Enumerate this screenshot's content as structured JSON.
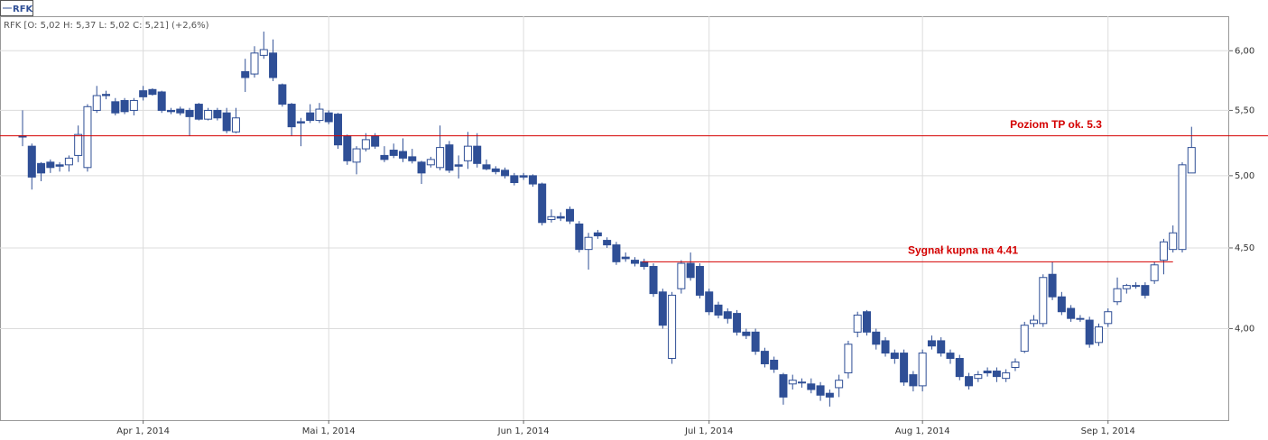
{
  "chart_data": {
    "type": "candlestick",
    "name": "RFK",
    "subtitle": "RFK [O: 5,02  H: 5,37  L: 5,02  C: 5,21] (+2,6%)",
    "color": "#2f4f96",
    "log": true,
    "grid": true,
    "axis_side": "right",
    "ylim": [
      3.5,
      6.31
    ],
    "yticks": [
      {
        "value": 4,
        "label": "4,00"
      },
      {
        "value": 4.5,
        "label": "4,50"
      },
      {
        "value": 5,
        "label": "5,00"
      },
      {
        "value": 5.5,
        "label": "5,50"
      },
      {
        "value": 6,
        "label": "6,00"
      }
    ],
    "xticks": [
      {
        "value": "2014-04-01",
        "label": "Apr 1, 2014"
      },
      {
        "value": "2014-05-01",
        "label": "Mai 1, 2014"
      },
      {
        "value": "2014-06-01",
        "label": "Jun 1, 2014"
      },
      {
        "value": "2014-07-01",
        "label": "Jul 1, 2014"
      },
      {
        "value": "2014-08-01",
        "label": "Aug 1, 2014"
      },
      {
        "value": "2014-09-01",
        "label": "Sep 1, 2014"
      }
    ],
    "annotations": [
      {
        "text": "Poziom TP ok. 5.3",
        "value": 5.3,
        "color": "#d40000"
      },
      {
        "text": "Sygnał kupna na 4.41",
        "value": 4.41,
        "from": "2014-06-20",
        "to": "2014-09-10",
        "color": "#d40000"
      }
    ],
    "x": [
      "2014-03-13",
      "2014-03-14",
      "2014-03-17",
      "2014-03-18",
      "2014-03-19",
      "2014-03-20",
      "2014-03-21",
      "2014-03-24",
      "2014-03-25",
      "2014-03-26",
      "2014-03-27",
      "2014-03-28",
      "2014-03-31",
      "2014-04-01",
      "2014-04-02",
      "2014-04-03",
      "2014-04-04",
      "2014-04-07",
      "2014-04-08",
      "2014-04-09",
      "2014-04-10",
      "2014-04-11",
      "2014-04-14",
      "2014-04-15",
      "2014-04-16",
      "2014-04-17",
      "2014-04-22",
      "2014-04-23",
      "2014-04-24",
      "2014-04-25",
      "2014-04-28",
      "2014-04-29",
      "2014-04-30",
      "2014-05-02",
      "2014-05-05",
      "2014-05-06",
      "2014-05-07",
      "2014-05-08",
      "2014-05-09",
      "2014-05-12",
      "2014-05-13",
      "2014-05-14",
      "2014-05-15",
      "2014-05-16",
      "2014-05-19",
      "2014-05-20",
      "2014-05-21",
      "2014-05-22",
      "2014-05-23",
      "2014-05-26",
      "2014-05-27",
      "2014-05-28",
      "2014-05-29",
      "2014-05-30",
      "2014-06-02",
      "2014-06-03",
      "2014-06-04",
      "2014-06-05",
      "2014-06-06",
      "2014-06-09",
      "2014-06-10",
      "2014-06-11",
      "2014-06-12",
      "2014-06-13",
      "2014-06-16",
      "2014-06-17",
      "2014-06-18",
      "2014-06-20",
      "2014-06-23",
      "2014-06-24",
      "2014-06-25",
      "2014-06-26",
      "2014-06-27",
      "2014-06-30",
      "2014-07-01",
      "2014-07-02",
      "2014-07-03",
      "2014-07-04",
      "2014-07-07",
      "2014-07-08",
      "2014-07-09",
      "2014-07-10",
      "2014-07-11",
      "2014-07-14",
      "2014-07-15",
      "2014-07-16",
      "2014-07-17",
      "2014-07-18",
      "2014-07-21",
      "2014-07-22",
      "2014-07-23",
      "2014-07-24",
      "2014-07-25",
      "2014-07-28",
      "2014-07-29",
      "2014-07-30",
      "2014-07-31",
      "2014-08-01",
      "2014-08-04",
      "2014-08-05",
      "2014-08-06",
      "2014-08-07",
      "2014-08-08",
      "2014-08-11",
      "2014-08-12",
      "2014-08-13",
      "2014-08-14",
      "2014-08-18",
      "2014-08-19",
      "2014-08-20",
      "2014-08-21",
      "2014-08-22",
      "2014-08-25",
      "2014-08-26",
      "2014-08-27",
      "2014-08-28",
      "2014-08-29",
      "2014-09-01",
      "2014-09-02",
      "2014-09-03",
      "2014-09-04",
      "2014-09-05",
      "2014-09-08",
      "2014-09-09",
      "2014-09-10",
      "2014-09-11",
      "2014-09-12"
    ],
    "ohlc": [
      [
        5.3,
        5.5,
        5.22,
        5.29
      ],
      [
        5.22,
        5.24,
        4.9,
        4.99
      ],
      [
        5.09,
        5.1,
        4.96,
        5.02
      ],
      [
        5.1,
        5.12,
        5.02,
        5.06
      ],
      [
        5.08,
        5.1,
        5.03,
        5.07
      ],
      [
        5.08,
        5.15,
        5.03,
        5.13
      ],
      [
        5.15,
        5.38,
        5.1,
        5.31
      ],
      [
        5.06,
        5.55,
        5.03,
        5.53
      ],
      [
        5.5,
        5.7,
        5.48,
        5.62
      ],
      [
        5.63,
        5.66,
        5.59,
        5.62
      ],
      [
        5.57,
        5.6,
        5.46,
        5.48
      ],
      [
        5.58,
        5.6,
        5.47,
        5.49
      ],
      [
        5.5,
        5.6,
        5.46,
        5.58
      ],
      [
        5.66,
        5.7,
        5.58,
        5.61
      ],
      [
        5.67,
        5.68,
        5.62,
        5.63
      ],
      [
        5.65,
        5.66,
        5.48,
        5.5
      ],
      [
        5.5,
        5.52,
        5.47,
        5.49
      ],
      [
        5.51,
        5.53,
        5.46,
        5.48
      ],
      [
        5.5,
        5.52,
        5.3,
        5.45
      ],
      [
        5.55,
        5.56,
        5.42,
        5.43
      ],
      [
        5.43,
        5.52,
        5.42,
        5.5
      ],
      [
        5.5,
        5.52,
        5.42,
        5.44
      ],
      [
        5.48,
        5.52,
        5.32,
        5.34
      ],
      [
        5.33,
        5.52,
        5.32,
        5.44
      ],
      [
        5.82,
        5.93,
        5.65,
        5.77
      ],
      [
        5.8,
        6.04,
        5.77,
        5.98
      ],
      [
        5.96,
        6.17,
        5.93,
        6.01
      ],
      [
        5.98,
        6.1,
        5.74,
        5.77
      ],
      [
        5.71,
        5.72,
        5.53,
        5.55
      ],
      [
        5.55,
        5.56,
        5.3,
        5.37
      ],
      [
        5.41,
        5.44,
        5.22,
        5.4
      ],
      [
        5.48,
        5.55,
        5.4,
        5.42
      ],
      [
        5.42,
        5.56,
        5.4,
        5.51
      ],
      [
        5.48,
        5.5,
        5.39,
        5.41
      ],
      [
        5.47,
        5.48,
        5.2,
        5.23
      ],
      [
        5.3,
        5.31,
        5.08,
        5.11
      ],
      [
        5.1,
        5.22,
        5.01,
        5.2
      ],
      [
        5.2,
        5.32,
        5.18,
        5.27
      ],
      [
        5.3,
        5.32,
        5.2,
        5.22
      ],
      [
        5.15,
        5.22,
        5.1,
        5.12
      ],
      [
        5.19,
        5.24,
        5.13,
        5.15
      ],
      [
        5.18,
        5.28,
        5.1,
        5.13
      ],
      [
        5.14,
        5.2,
        5.09,
        5.11
      ],
      [
        5.1,
        5.11,
        4.94,
        5.02
      ],
      [
        5.08,
        5.14,
        5.06,
        5.12
      ],
      [
        5.06,
        5.38,
        5.04,
        5.21
      ],
      [
        5.23,
        5.26,
        5.02,
        5.04
      ],
      [
        5.08,
        5.15,
        4.98,
        5.07
      ],
      [
        5.11,
        5.33,
        5.05,
        5.22
      ],
      [
        5.22,
        5.32,
        5.06,
        5.09
      ],
      [
        5.08,
        5.12,
        5.04,
        5.05
      ],
      [
        5.05,
        5.07,
        5.01,
        5.03
      ],
      [
        5.04,
        5.06,
        4.98,
        5.0
      ],
      [
        5.0,
        5.02,
        4.93,
        4.95
      ],
      [
        5.0,
        5.02,
        4.97,
        4.99
      ],
      [
        5.0,
        5.01,
        4.92,
        4.94
      ],
      [
        4.94,
        4.95,
        4.65,
        4.67
      ],
      [
        4.69,
        4.76,
        4.67,
        4.71
      ],
      [
        4.71,
        4.74,
        4.68,
        4.7
      ],
      [
        4.76,
        4.78,
        4.66,
        4.68
      ],
      [
        4.66,
        4.68,
        4.47,
        4.49
      ],
      [
        4.49,
        4.6,
        4.36,
        4.57
      ],
      [
        4.6,
        4.62,
        4.56,
        4.58
      ],
      [
        4.55,
        4.57,
        4.5,
        4.52
      ],
      [
        4.52,
        4.54,
        4.39,
        4.41
      ],
      [
        4.44,
        4.47,
        4.41,
        4.43
      ],
      [
        4.42,
        4.44,
        4.38,
        4.4
      ],
      [
        4.41,
        4.43,
        4.36,
        4.38
      ],
      [
        4.38,
        4.4,
        4.19,
        4.21
      ],
      [
        4.22,
        4.24,
        4.0,
        4.02
      ],
      [
        3.83,
        4.22,
        3.8,
        4.2
      ],
      [
        4.24,
        4.42,
        4.21,
        4.4
      ],
      [
        4.4,
        4.47,
        4.29,
        4.31
      ],
      [
        4.38,
        4.4,
        4.18,
        4.2
      ],
      [
        4.22,
        4.24,
        4.08,
        4.1
      ],
      [
        4.14,
        4.16,
        4.06,
        4.08
      ],
      [
        4.1,
        4.12,
        4.03,
        4.06
      ],
      [
        4.09,
        4.11,
        3.96,
        3.98
      ],
      [
        3.98,
        4.0,
        3.94,
        3.96
      ],
      [
        3.98,
        4.0,
        3.85,
        3.87
      ],
      [
        3.87,
        3.89,
        3.78,
        3.8
      ],
      [
        3.82,
        3.84,
        3.75,
        3.77
      ],
      [
        3.74,
        3.75,
        3.58,
        3.62
      ],
      [
        3.69,
        3.74,
        3.66,
        3.71
      ],
      [
        3.7,
        3.72,
        3.67,
        3.7
      ],
      [
        3.69,
        3.72,
        3.64,
        3.66
      ],
      [
        3.68,
        3.7,
        3.6,
        3.63
      ],
      [
        3.64,
        3.66,
        3.57,
        3.62
      ],
      [
        3.67,
        3.74,
        3.62,
        3.71
      ],
      [
        3.75,
        3.93,
        3.72,
        3.91
      ],
      [
        3.98,
        4.1,
        3.95,
        4.08
      ],
      [
        4.1,
        4.11,
        3.96,
        3.98
      ],
      [
        3.98,
        4.0,
        3.88,
        3.91
      ],
      [
        3.93,
        3.95,
        3.84,
        3.86
      ],
      [
        3.86,
        3.88,
        3.8,
        3.83
      ],
      [
        3.86,
        3.88,
        3.68,
        3.7
      ],
      [
        3.74,
        3.76,
        3.65,
        3.68
      ],
      [
        3.68,
        3.88,
        3.65,
        3.86
      ],
      [
        3.93,
        3.96,
        3.88,
        3.9
      ],
      [
        3.93,
        3.95,
        3.84,
        3.86
      ],
      [
        3.86,
        3.88,
        3.8,
        3.83
      ],
      [
        3.83,
        3.85,
        3.71,
        3.73
      ],
      [
        3.73,
        3.75,
        3.66,
        3.68
      ],
      [
        3.72,
        3.76,
        3.7,
        3.74
      ],
      [
        3.76,
        3.78,
        3.73,
        3.75
      ],
      [
        3.76,
        3.78,
        3.7,
        3.73
      ],
      [
        3.72,
        3.77,
        3.7,
        3.75
      ],
      [
        3.78,
        3.83,
        3.76,
        3.81
      ],
      [
        3.87,
        4.04,
        3.86,
        4.02
      ],
      [
        4.03,
        4.08,
        4.01,
        4.05
      ],
      [
        4.03,
        4.33,
        4.01,
        4.31
      ],
      [
        4.33,
        4.41,
        4.17,
        4.19
      ],
      [
        4.19,
        4.22,
        4.08,
        4.1
      ],
      [
        4.12,
        4.14,
        4.04,
        4.06
      ],
      [
        4.06,
        4.08,
        4.04,
        4.06
      ],
      [
        4.05,
        4.07,
        3.89,
        3.91
      ],
      [
        3.92,
        4.03,
        3.9,
        4.01
      ],
      [
        4.03,
        4.12,
        4.01,
        4.1
      ],
      [
        4.16,
        4.31,
        4.14,
        4.24
      ],
      [
        4.24,
        4.27,
        4.21,
        4.26
      ],
      [
        4.26,
        4.28,
        4.24,
        4.26
      ],
      [
        4.26,
        4.28,
        4.18,
        4.2
      ],
      [
        4.29,
        4.41,
        4.27,
        4.39
      ],
      [
        4.42,
        4.56,
        4.33,
        4.54
      ],
      [
        4.49,
        4.65,
        4.47,
        4.6
      ],
      [
        4.49,
        5.1,
        4.47,
        5.08
      ],
      [
        5.02,
        5.37,
        5.02,
        5.21
      ]
    ]
  }
}
